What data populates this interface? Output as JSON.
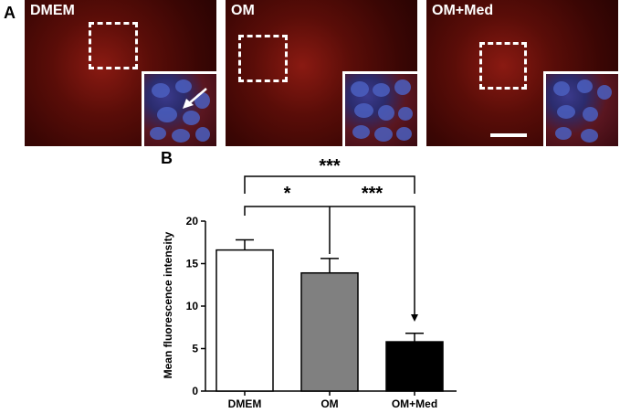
{
  "panels": {
    "a_label": "A",
    "b_label": "B",
    "images": [
      {
        "label": "DMEM"
      },
      {
        "label": "OM"
      },
      {
        "label": "OM+Med"
      }
    ]
  },
  "chart_data": {
    "type": "bar",
    "title": "",
    "xlabel": "",
    "ylabel": "Mean fluorescence intensity",
    "categories": [
      "DMEM",
      "OM",
      "OM+Med"
    ],
    "values": [
      16.6,
      13.9,
      5.8
    ],
    "errors": [
      1.2,
      1.7,
      1.0
    ],
    "bar_colors": [
      "#ffffff",
      "#808080",
      "#000000"
    ],
    "ylim": [
      0,
      20
    ],
    "yticks": [
      "0",
      "5",
      "10",
      "15",
      "20"
    ],
    "grid": false,
    "significance": [
      {
        "from": "DMEM",
        "to": "OM+Med",
        "label": "***"
      },
      {
        "from": "DMEM",
        "to": "OM",
        "label": "*"
      },
      {
        "from": "OM",
        "to": "OM+Med",
        "label": "***"
      }
    ]
  }
}
